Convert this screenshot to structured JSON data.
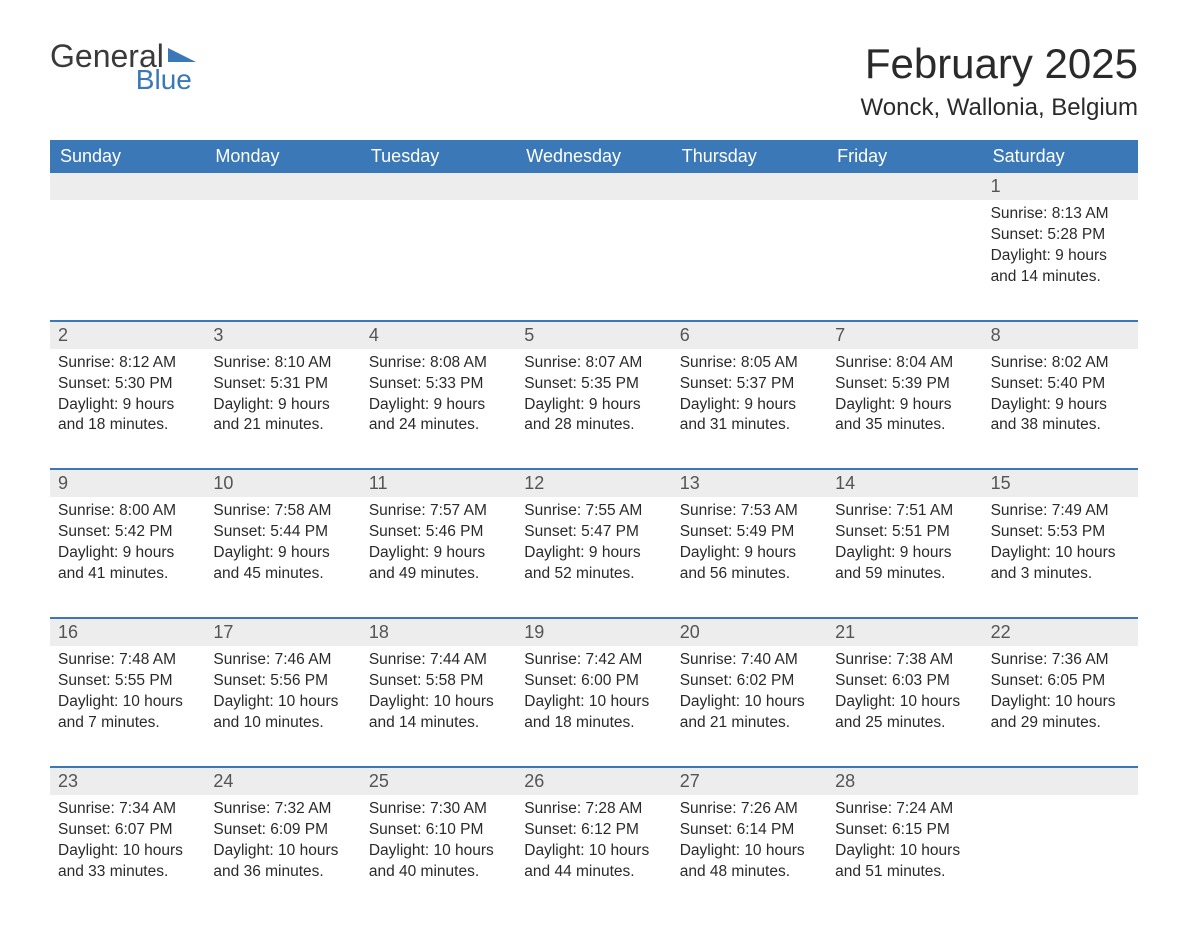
{
  "logo": {
    "general": "General",
    "blue": "Blue"
  },
  "title": "February 2025",
  "location": "Wonck, Wallonia, Belgium",
  "colors": {
    "header_bg": "#3a78b8",
    "header_text": "#ffffff",
    "daynum_bg": "#ededed",
    "body_text": "#2a2a2a",
    "page_bg": "#ffffff",
    "logo_gray": "#3a3a3a",
    "logo_blue": "#3a78b8"
  },
  "fontsize": {
    "title_pt": 42,
    "location_pt": 24,
    "dayheader_pt": 18,
    "daynum_pt": 18,
    "body_pt": 15.5
  },
  "day_names": [
    "Sunday",
    "Monday",
    "Tuesday",
    "Wednesday",
    "Thursday",
    "Friday",
    "Saturday"
  ],
  "weeks": [
    {
      "days": [
        null,
        null,
        null,
        null,
        null,
        null,
        {
          "n": "1",
          "sunrise": "Sunrise: 8:13 AM",
          "sunset": "Sunset: 5:28 PM",
          "dl1": "Daylight: 9 hours",
          "dl2": "and 14 minutes."
        }
      ]
    },
    {
      "days": [
        {
          "n": "2",
          "sunrise": "Sunrise: 8:12 AM",
          "sunset": "Sunset: 5:30 PM",
          "dl1": "Daylight: 9 hours",
          "dl2": "and 18 minutes."
        },
        {
          "n": "3",
          "sunrise": "Sunrise: 8:10 AM",
          "sunset": "Sunset: 5:31 PM",
          "dl1": "Daylight: 9 hours",
          "dl2": "and 21 minutes."
        },
        {
          "n": "4",
          "sunrise": "Sunrise: 8:08 AM",
          "sunset": "Sunset: 5:33 PM",
          "dl1": "Daylight: 9 hours",
          "dl2": "and 24 minutes."
        },
        {
          "n": "5",
          "sunrise": "Sunrise: 8:07 AM",
          "sunset": "Sunset: 5:35 PM",
          "dl1": "Daylight: 9 hours",
          "dl2": "and 28 minutes."
        },
        {
          "n": "6",
          "sunrise": "Sunrise: 8:05 AM",
          "sunset": "Sunset: 5:37 PM",
          "dl1": "Daylight: 9 hours",
          "dl2": "and 31 minutes."
        },
        {
          "n": "7",
          "sunrise": "Sunrise: 8:04 AM",
          "sunset": "Sunset: 5:39 PM",
          "dl1": "Daylight: 9 hours",
          "dl2": "and 35 minutes."
        },
        {
          "n": "8",
          "sunrise": "Sunrise: 8:02 AM",
          "sunset": "Sunset: 5:40 PM",
          "dl1": "Daylight: 9 hours",
          "dl2": "and 38 minutes."
        }
      ]
    },
    {
      "days": [
        {
          "n": "9",
          "sunrise": "Sunrise: 8:00 AM",
          "sunset": "Sunset: 5:42 PM",
          "dl1": "Daylight: 9 hours",
          "dl2": "and 41 minutes."
        },
        {
          "n": "10",
          "sunrise": "Sunrise: 7:58 AM",
          "sunset": "Sunset: 5:44 PM",
          "dl1": "Daylight: 9 hours",
          "dl2": "and 45 minutes."
        },
        {
          "n": "11",
          "sunrise": "Sunrise: 7:57 AM",
          "sunset": "Sunset: 5:46 PM",
          "dl1": "Daylight: 9 hours",
          "dl2": "and 49 minutes."
        },
        {
          "n": "12",
          "sunrise": "Sunrise: 7:55 AM",
          "sunset": "Sunset: 5:47 PM",
          "dl1": "Daylight: 9 hours",
          "dl2": "and 52 minutes."
        },
        {
          "n": "13",
          "sunrise": "Sunrise: 7:53 AM",
          "sunset": "Sunset: 5:49 PM",
          "dl1": "Daylight: 9 hours",
          "dl2": "and 56 minutes."
        },
        {
          "n": "14",
          "sunrise": "Sunrise: 7:51 AM",
          "sunset": "Sunset: 5:51 PM",
          "dl1": "Daylight: 9 hours",
          "dl2": "and 59 minutes."
        },
        {
          "n": "15",
          "sunrise": "Sunrise: 7:49 AM",
          "sunset": "Sunset: 5:53 PM",
          "dl1": "Daylight: 10 hours",
          "dl2": "and 3 minutes."
        }
      ]
    },
    {
      "days": [
        {
          "n": "16",
          "sunrise": "Sunrise: 7:48 AM",
          "sunset": "Sunset: 5:55 PM",
          "dl1": "Daylight: 10 hours",
          "dl2": "and 7 minutes."
        },
        {
          "n": "17",
          "sunrise": "Sunrise: 7:46 AM",
          "sunset": "Sunset: 5:56 PM",
          "dl1": "Daylight: 10 hours",
          "dl2": "and 10 minutes."
        },
        {
          "n": "18",
          "sunrise": "Sunrise: 7:44 AM",
          "sunset": "Sunset: 5:58 PM",
          "dl1": "Daylight: 10 hours",
          "dl2": "and 14 minutes."
        },
        {
          "n": "19",
          "sunrise": "Sunrise: 7:42 AM",
          "sunset": "Sunset: 6:00 PM",
          "dl1": "Daylight: 10 hours",
          "dl2": "and 18 minutes."
        },
        {
          "n": "20",
          "sunrise": "Sunrise: 7:40 AM",
          "sunset": "Sunset: 6:02 PM",
          "dl1": "Daylight: 10 hours",
          "dl2": "and 21 minutes."
        },
        {
          "n": "21",
          "sunrise": "Sunrise: 7:38 AM",
          "sunset": "Sunset: 6:03 PM",
          "dl1": "Daylight: 10 hours",
          "dl2": "and 25 minutes."
        },
        {
          "n": "22",
          "sunrise": "Sunrise: 7:36 AM",
          "sunset": "Sunset: 6:05 PM",
          "dl1": "Daylight: 10 hours",
          "dl2": "and 29 minutes."
        }
      ]
    },
    {
      "days": [
        {
          "n": "23",
          "sunrise": "Sunrise: 7:34 AM",
          "sunset": "Sunset: 6:07 PM",
          "dl1": "Daylight: 10 hours",
          "dl2": "and 33 minutes."
        },
        {
          "n": "24",
          "sunrise": "Sunrise: 7:32 AM",
          "sunset": "Sunset: 6:09 PM",
          "dl1": "Daylight: 10 hours",
          "dl2": "and 36 minutes."
        },
        {
          "n": "25",
          "sunrise": "Sunrise: 7:30 AM",
          "sunset": "Sunset: 6:10 PM",
          "dl1": "Daylight: 10 hours",
          "dl2": "and 40 minutes."
        },
        {
          "n": "26",
          "sunrise": "Sunrise: 7:28 AM",
          "sunset": "Sunset: 6:12 PM",
          "dl1": "Daylight: 10 hours",
          "dl2": "and 44 minutes."
        },
        {
          "n": "27",
          "sunrise": "Sunrise: 7:26 AM",
          "sunset": "Sunset: 6:14 PM",
          "dl1": "Daylight: 10 hours",
          "dl2": "and 48 minutes."
        },
        {
          "n": "28",
          "sunrise": "Sunrise: 7:24 AM",
          "sunset": "Sunset: 6:15 PM",
          "dl1": "Daylight: 10 hours",
          "dl2": "and 51 minutes."
        },
        null
      ]
    }
  ]
}
